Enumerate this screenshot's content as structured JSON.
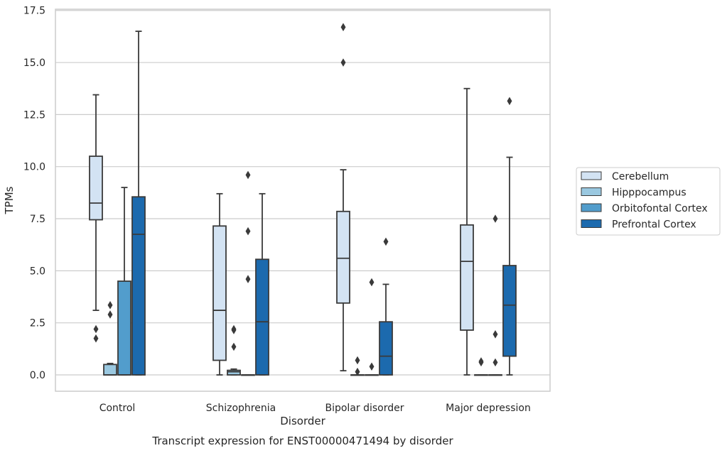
{
  "chart_data": {
    "type": "box",
    "title": "",
    "caption": "Transcript expression for ENST00000471494 by disorder",
    "xlabel": "Disorder",
    "ylabel": "TPMs",
    "ylim": [
      -0.8,
      17.6
    ],
    "yticks": [
      "0.0",
      "2.5",
      "5.0",
      "7.5",
      "10.0",
      "12.5",
      "15.0",
      "17.5"
    ],
    "ytick_values": [
      0,
      2.5,
      5,
      7.5,
      10,
      12.5,
      15,
      17.5
    ],
    "grid": "horizontal",
    "legend_position": "right",
    "categories": [
      "Control",
      "Schizophrenia",
      "Bipolar disorder",
      "Major depression"
    ],
    "series": [
      {
        "name": "Cerebellum",
        "color": "#d3e3f3",
        "boxes": [
          {
            "whisker_low": 3.1,
            "q1": 7.45,
            "median": 8.25,
            "q3": 10.5,
            "whisker_high": 13.45,
            "outliers": [
              2.2,
              1.75
            ]
          },
          {
            "whisker_low": 0.0,
            "q1": 0.7,
            "median": 3.1,
            "q3": 7.15,
            "whisker_high": 8.7,
            "outliers": []
          },
          {
            "whisker_low": 0.2,
            "q1": 3.45,
            "median": 5.6,
            "q3": 7.85,
            "whisker_high": 9.85,
            "outliers": [
              16.7,
              15.0
            ]
          },
          {
            "whisker_low": 0.0,
            "q1": 2.15,
            "median": 5.45,
            "q3": 7.2,
            "whisker_high": 13.75,
            "outliers": []
          }
        ]
      },
      {
        "name": "Hipppocampus",
        "color": "#9ac8e0",
        "boxes": [
          {
            "whisker_low": 0.0,
            "q1": 0.0,
            "median": 0.0,
            "q3": 0.5,
            "whisker_high": 0.55,
            "outliers": [
              3.35,
              2.9
            ]
          },
          {
            "whisker_low": 0.0,
            "q1": 0.0,
            "median": 0.15,
            "q3": 0.22,
            "whisker_high": 0.28,
            "outliers": [
              2.2,
              2.15,
              1.35
            ]
          },
          {
            "whisker_low": 0.0,
            "q1": 0.0,
            "median": 0.0,
            "q3": 0.0,
            "whisker_high": 0.0,
            "outliers": [
              0.7,
              0.15
            ]
          },
          {
            "whisker_low": 0.0,
            "q1": 0.0,
            "median": 0.0,
            "q3": 0.0,
            "whisker_high": 0.0,
            "outliers": [
              0.65,
              0.6
            ]
          }
        ]
      },
      {
        "name": "Orbitofontal Cortex",
        "color": "#529dcc",
        "boxes": [
          {
            "whisker_low": 0.0,
            "q1": 0.0,
            "median": 0.0,
            "q3": 4.5,
            "whisker_high": 9.0,
            "outliers": []
          },
          {
            "whisker_low": 0.0,
            "q1": 0.0,
            "median": 0.0,
            "q3": 0.0,
            "whisker_high": 0.0,
            "outliers": [
              9.6,
              6.9,
              4.6
            ]
          },
          {
            "whisker_low": 0.0,
            "q1": 0.0,
            "median": 0.0,
            "q3": 0.0,
            "whisker_high": 0.0,
            "outliers": [
              4.45,
              0.4
            ]
          },
          {
            "whisker_low": 0.0,
            "q1": 0.0,
            "median": 0.0,
            "q3": 0.0,
            "whisker_high": 0.0,
            "outliers": [
              7.5,
              1.95,
              0.6
            ]
          }
        ]
      },
      {
        "name": "Prefrontal Cortex",
        "color": "#1c6aae",
        "boxes": [
          {
            "whisker_low": 0.0,
            "q1": 0.0,
            "median": 6.75,
            "q3": 8.55,
            "whisker_high": 16.5,
            "outliers": []
          },
          {
            "whisker_low": 0.0,
            "q1": 0.0,
            "median": 2.55,
            "q3": 5.55,
            "whisker_high": 8.7,
            "outliers": []
          },
          {
            "whisker_low": 0.0,
            "q1": 0.0,
            "median": 0.9,
            "q3": 2.55,
            "whisker_high": 4.35,
            "outliers": [
              6.4
            ]
          },
          {
            "whisker_low": 0.0,
            "q1": 0.9,
            "median": 3.35,
            "q3": 5.25,
            "whisker_high": 10.45,
            "outliers": [
              13.15
            ]
          }
        ]
      }
    ]
  },
  "colors": {
    "grid": "#cccccc",
    "frame": "#cccccc",
    "box_edge": "#3a3a3a",
    "text": "#262626"
  }
}
